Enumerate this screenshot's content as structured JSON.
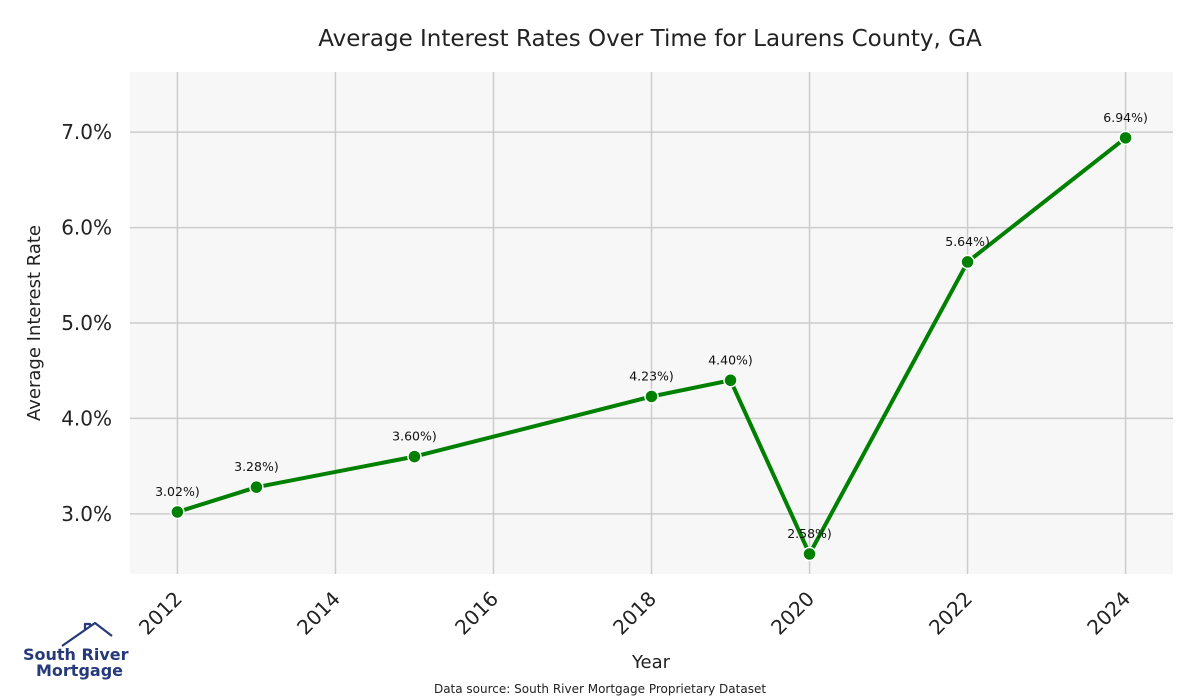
{
  "chart_data": {
    "type": "line",
    "title": "Average Interest Rates Over Time for Laurens County, GA",
    "xlabel": "Year",
    "ylabel": "Average Interest Rate",
    "x": [
      2012,
      2013,
      2015,
      2018,
      2019,
      2020,
      2022,
      2024
    ],
    "series": [
      {
        "values": [
          3.02,
          3.28,
          3.6,
          4.23,
          4.4,
          2.58,
          5.64,
          6.94
        ]
      }
    ],
    "data_labels": [
      "3.02%)",
      "3.28%)",
      "3.60%)",
      "4.23%)",
      "4.40%)",
      "2.58%)",
      "5.64%)",
      "6.94%)"
    ],
    "xticks": [
      2012,
      2014,
      2016,
      2018,
      2020,
      2022,
      2024
    ],
    "xtick_labels": [
      "2012",
      "2014",
      "2016",
      "2018",
      "2020",
      "2022",
      "2024"
    ],
    "yticks": [
      3.0,
      4.0,
      5.0,
      6.0,
      7.0
    ],
    "ytick_labels": [
      "3.0%",
      "4.0%",
      "5.0%",
      "6.0%",
      "7.0%"
    ],
    "xlim": [
      2011.4,
      2024.6
    ],
    "ylim": [
      2.37,
      7.63
    ],
    "grid": true,
    "line_color": "#008000",
    "plot_background": "#f7f7f7",
    "grid_color": "#cccccc"
  },
  "footer": {
    "source": "Data source: South River Mortgage Proprietary Dataset"
  },
  "logo": {
    "line1": "South River",
    "line2": "Mortgage",
    "icon": "house-roof-icon",
    "color": "#263a7a"
  }
}
